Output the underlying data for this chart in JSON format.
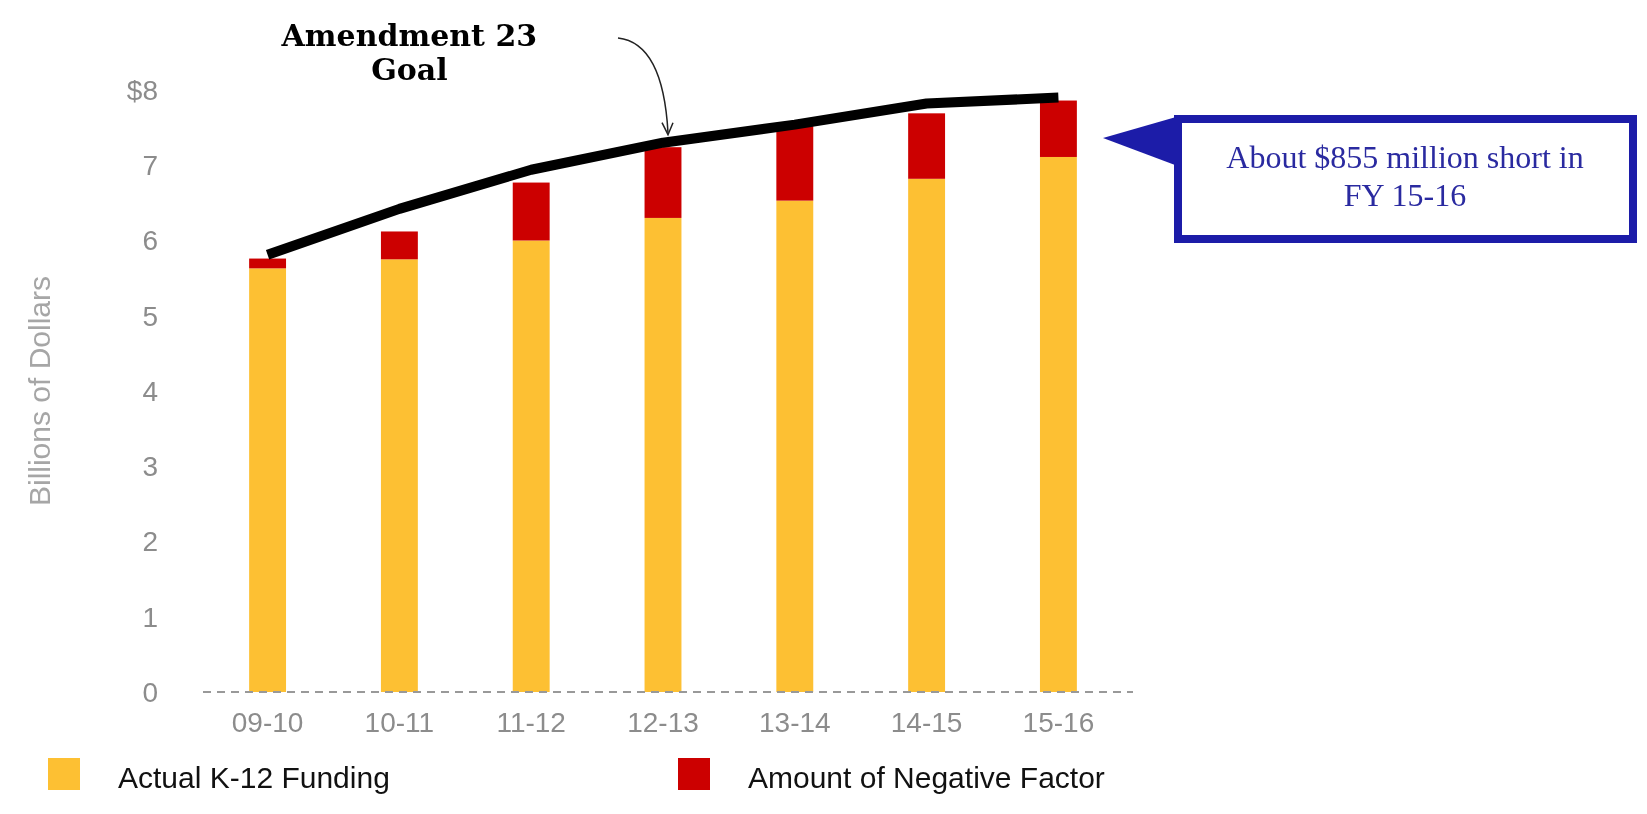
{
  "chart_data": {
    "type": "bar",
    "stacked": true,
    "ylabel": "Billions of Dollars",
    "categories": [
      "09-10",
      "10-11",
      "11-12",
      "12-13",
      "13-14",
      "14-15",
      "15-16"
    ],
    "series": [
      {
        "name": "Actual K-12 Funding",
        "color": "#fdc033",
        "values": [
          5.63,
          5.75,
          6.0,
          6.3,
          6.53,
          6.82,
          7.11
        ]
      },
      {
        "name": "Amount of Negative Factor",
        "color": "#cc0000",
        "values": [
          0.13,
          0.37,
          0.77,
          0.94,
          0.99,
          0.87,
          0.75
        ]
      },
      {
        "name": "Amendment 23 Goal",
        "type": "line",
        "color": "#000000",
        "values": [
          5.81,
          6.42,
          6.94,
          7.3,
          7.54,
          7.82,
          7.9
        ]
      }
    ],
    "ylim": [
      0,
      8
    ],
    "yticks": [
      0,
      1,
      2,
      3,
      4,
      5,
      6,
      7,
      {
        "value": 8,
        "label": "$8"
      }
    ],
    "legend": "bottom",
    "marker": "none",
    "line_style": "solid",
    "annotations": [
      "About $855 million short in FY 15-16"
    ]
  }
}
